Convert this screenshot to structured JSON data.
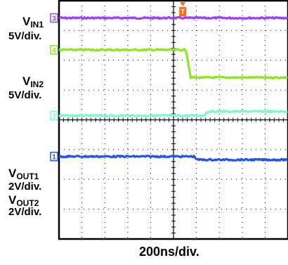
{
  "chart_data": {
    "type": "line",
    "title": "",
    "xlabel": "200ns/div.",
    "ylabel": "",
    "grid": true,
    "x_divisions": 10,
    "y_divisions": 8,
    "x_unit": "div",
    "xlim": [
      0,
      10
    ],
    "ylim": [
      0,
      8
    ],
    "trigger_marker": {
      "label": "T",
      "x": 5.65,
      "color": "#ff6a1a"
    },
    "series": [
      {
        "name": "VIN1",
        "label_main": "V",
        "label_sub": "IN1",
        "scale": "5V/div.",
        "channel": "3",
        "color": "#9b40ff",
        "points": [
          [
            0,
            7.42
          ],
          [
            10,
            7.42
          ]
        ]
      },
      {
        "name": "VIN2",
        "label_main": "V",
        "label_sub": "IN2",
        "scale": "5V/div.",
        "channel": "4",
        "color": "#8ae81c",
        "points": [
          [
            0,
            6.35
          ],
          [
            5.55,
            6.35
          ],
          [
            5.75,
            5.42
          ],
          [
            10,
            5.42
          ]
        ]
      },
      {
        "name": "VOUT2",
        "label_main": "V",
        "label_sub": "OUT2",
        "scale": "2V/div.",
        "channel": "2",
        "color": "#7ff5d0",
        "points": [
          [
            0,
            4.14
          ],
          [
            6.3,
            4.14
          ],
          [
            6.5,
            4.28
          ],
          [
            10,
            4.28
          ]
        ]
      },
      {
        "name": "VOUT1",
        "label_main": "V",
        "label_sub": "OUT1",
        "scale": "2V/div.",
        "channel": "1",
        "color": "#2255e8",
        "points": [
          [
            0,
            2.77
          ],
          [
            5.9,
            2.77
          ],
          [
            6.05,
            2.66
          ],
          [
            10,
            2.66
          ]
        ]
      }
    ]
  }
}
